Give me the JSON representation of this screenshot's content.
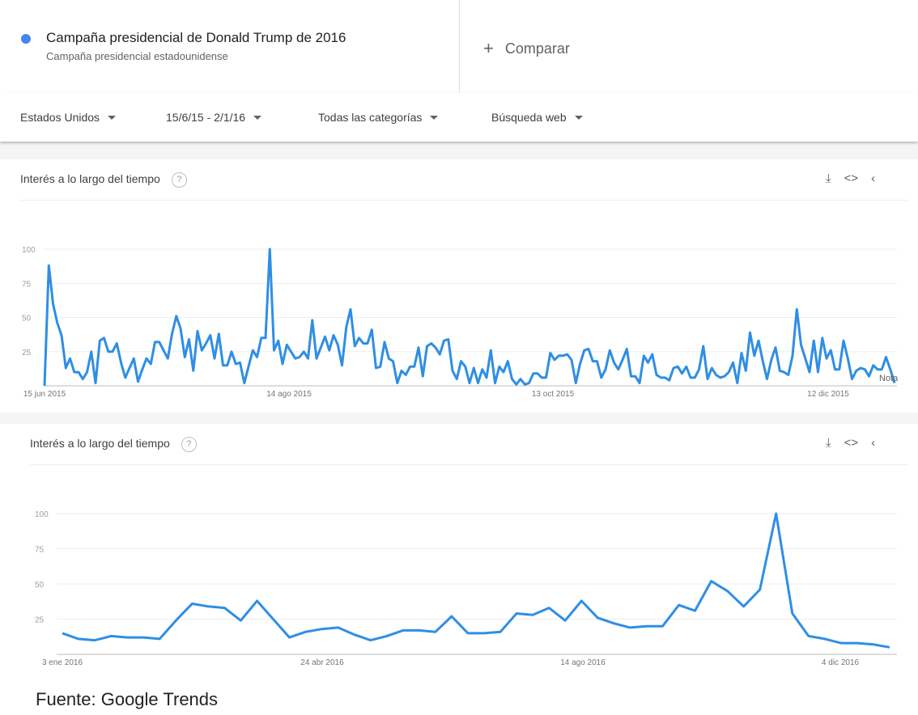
{
  "header": {
    "term_title": "Campaña presidencial de Donald Trump de 2016",
    "term_subtitle": "Campaña presidencial estadounidense",
    "compare_label": "Comparar"
  },
  "filters": {
    "region": "Estados Unidos",
    "date_range": "15/6/15 - 2/1/16",
    "category": "Todas las categorías",
    "search_type": "Búsqueda web"
  },
  "panels": [
    {
      "title": "Interés a lo largo del tiempo",
      "help": "?"
    },
    {
      "title": "Interés a lo largo del tiempo",
      "help": "?"
    }
  ],
  "source": "Fuente: Google Trends",
  "colors": {
    "line": "#2f8ee5",
    "term_dot": "#4285f4"
  },
  "chart_data": [
    {
      "type": "line",
      "ylim": [
        0,
        100
      ],
      "yticks": [
        "100",
        "75",
        "50",
        "25"
      ],
      "xticks": [
        "15 jun 2015",
        "14 ago 2015",
        "13 oct 2015",
        "12 dic 2015"
      ],
      "note": "Nota",
      "values": [
        0,
        88,
        60,
        46,
        37,
        13,
        20,
        10,
        10,
        5,
        10,
        25,
        2,
        33,
        35,
        25,
        25,
        31,
        17,
        6,
        13,
        20,
        3,
        12,
        20,
        16,
        32,
        32,
        26,
        20,
        38,
        51,
        42,
        21,
        34,
        11,
        40,
        26,
        31,
        37,
        20,
        38,
        15,
        15,
        25,
        16,
        17,
        2,
        14,
        26,
        21,
        35,
        35,
        100,
        26,
        33,
        16,
        30,
        25,
        20,
        21,
        25,
        20,
        48,
        20,
        28,
        36,
        26,
        37,
        30,
        15,
        43,
        56,
        29,
        35,
        31,
        31,
        41,
        13,
        14,
        32,
        20,
        18,
        2,
        11,
        8,
        14,
        14,
        28,
        7,
        29,
        31,
        28,
        23,
        33,
        34,
        11,
        5,
        18,
        14,
        2,
        13,
        2,
        12,
        6,
        26,
        2,
        14,
        10,
        18,
        5,
        1,
        5,
        1,
        2,
        9,
        9,
        6,
        6,
        24,
        19,
        22,
        22,
        23,
        19,
        2,
        16,
        26,
        27,
        18,
        18,
        6,
        12,
        26,
        17,
        12,
        19,
        27,
        7,
        7,
        2,
        22,
        17,
        23,
        8,
        6,
        6,
        4,
        13,
        14,
        9,
        14,
        6,
        6,
        12,
        29,
        5,
        13,
        8,
        6,
        7,
        10,
        17,
        2,
        24,
        11,
        39,
        22,
        33,
        18,
        5,
        19,
        28,
        11,
        10,
        8,
        22,
        56,
        30,
        20,
        10,
        33,
        10,
        35,
        20,
        26,
        12,
        12,
        33,
        20,
        5,
        11,
        13,
        12,
        7,
        15,
        12,
        12,
        21,
        12,
        2
      ]
    },
    {
      "type": "line",
      "ylim": [
        0,
        100
      ],
      "yticks": [
        "100",
        "75",
        "50",
        "25"
      ],
      "xticks": [
        "3 ene 2016",
        "24 abr 2016",
        "14 ago 2016",
        "4 dic 2016"
      ],
      "values": [
        15,
        11,
        10,
        13,
        12,
        12,
        11,
        24,
        36,
        34,
        33,
        24,
        38,
        25,
        12,
        16,
        18,
        19,
        14,
        10,
        13,
        17,
        17,
        16,
        27,
        15,
        15,
        16,
        29,
        28,
        33,
        24,
        38,
        26,
        22,
        19,
        20,
        20,
        35,
        31,
        52,
        45,
        34,
        46,
        100,
        29,
        13,
        11,
        8,
        8,
        7,
        5
      ]
    }
  ]
}
